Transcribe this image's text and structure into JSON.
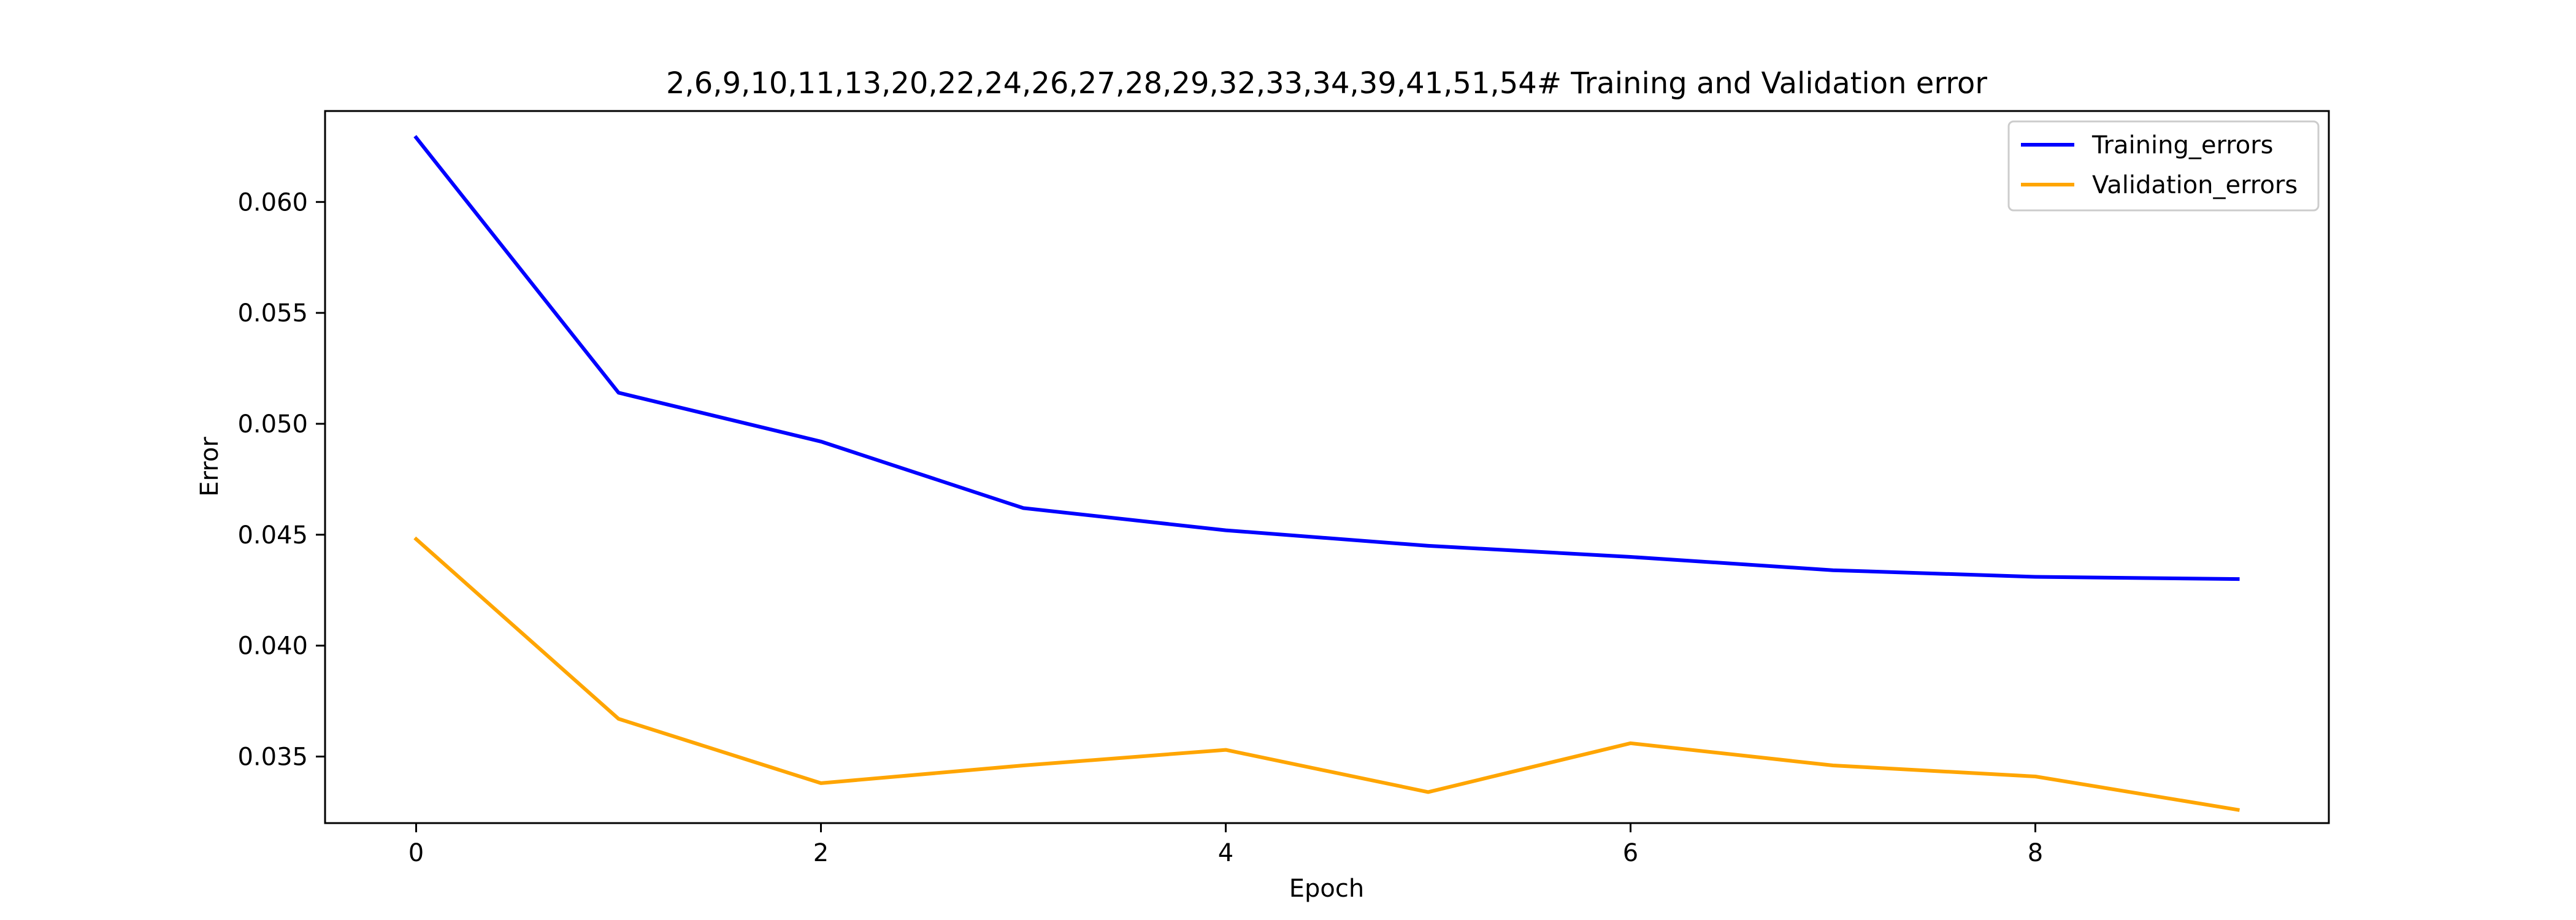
{
  "chart_data": {
    "type": "line",
    "title": "2,6,9,10,11,13,20,22,24,26,27,28,29,32,33,34,39,41,51,54# Training and Validation error",
    "xlabel": "Epoch",
    "ylabel": "Error",
    "x": [
      0,
      1,
      2,
      3,
      4,
      5,
      6,
      7,
      8,
      9
    ],
    "xlim": [
      -0.45,
      9.45
    ],
    "ylim": [
      0.032,
      0.0641
    ],
    "xticks": [
      0,
      2,
      4,
      6,
      8
    ],
    "yticks": [
      0.035,
      0.04,
      0.045,
      0.05,
      0.055,
      0.06
    ],
    "ytick_labels": [
      "0.035",
      "0.040",
      "0.045",
      "0.050",
      "0.055",
      "0.060"
    ],
    "grid": false,
    "legend_position": "top-right",
    "series": [
      {
        "name": "Training_errors",
        "color": "#0000ff",
        "values": [
          0.0629,
          0.0514,
          0.0492,
          0.0462,
          0.0452,
          0.0445,
          0.044,
          0.0434,
          0.0431,
          0.043
        ]
      },
      {
        "name": "Validation_errors",
        "color": "#ffa500",
        "values": [
          0.0448,
          0.0367,
          0.0338,
          0.0346,
          0.0353,
          0.0334,
          0.0356,
          0.0346,
          0.0341,
          0.0326
        ]
      }
    ]
  }
}
